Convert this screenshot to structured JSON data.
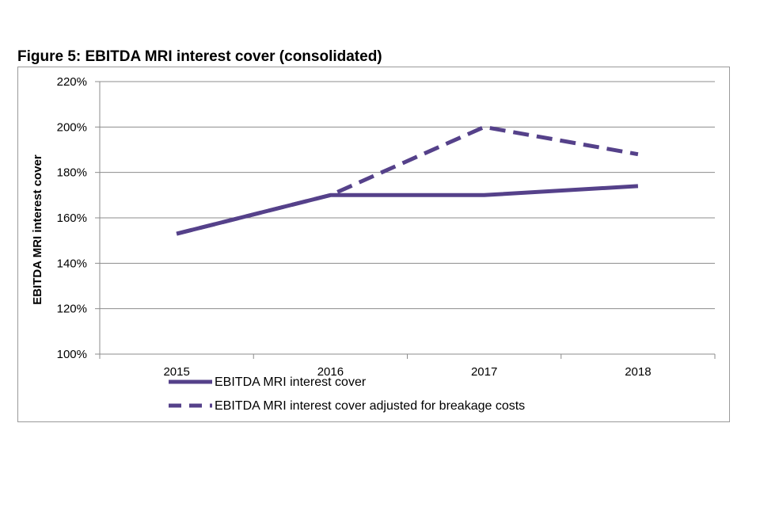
{
  "chart_data": {
    "type": "line",
    "title": "Figure 5: EBITDA MRI interest cover (consolidated)",
    "xlabel": "",
    "ylabel": "EBITDA MRI interest cover",
    "categories": [
      "2015",
      "2016",
      "2017",
      "2018"
    ],
    "ylim": [
      100,
      220
    ],
    "yticks": [
      100,
      120,
      140,
      160,
      180,
      200,
      220
    ],
    "ytick_labels": [
      "100%",
      "120%",
      "140%",
      "160%",
      "180%",
      "200%",
      "220%"
    ],
    "grid": true,
    "legend_position": "bottom-left",
    "series": [
      {
        "name": "EBITDA MRI interest cover",
        "values": [
          153,
          170,
          170,
          174
        ],
        "style": "solid",
        "color": "#55418a"
      },
      {
        "name": "EBITDA MRI interest cover adjusted for breakage costs",
        "values": [
          153,
          170,
          200,
          188
        ],
        "style": "dashed",
        "color": "#55418a"
      }
    ]
  }
}
